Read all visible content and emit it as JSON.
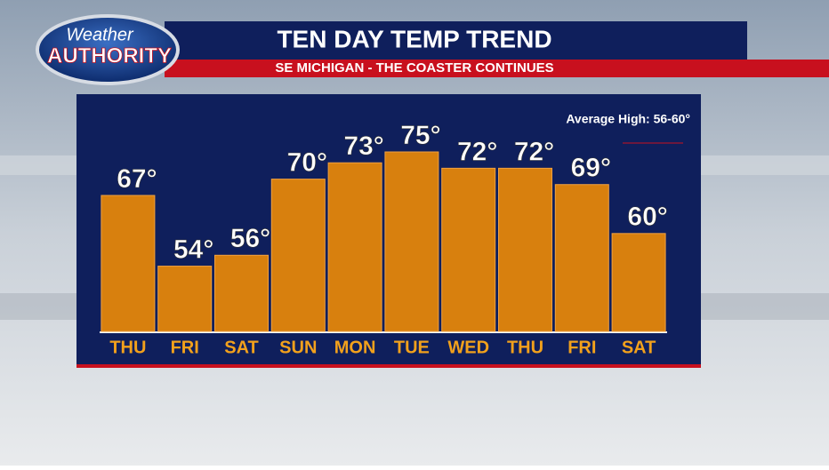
{
  "logo": {
    "line1": "Weather",
    "line2": "AUTHORITY"
  },
  "chart_data": {
    "type": "bar",
    "title": "TEN DAY TEMP TREND",
    "subtitle": "SE MICHIGAN - THE COASTER CONTINUES",
    "annotation": "Average High: 56-60°",
    "categories": [
      "THU",
      "FRI",
      "SAT",
      "SUN",
      "MON",
      "TUE",
      "WED",
      "THU",
      "FRI",
      "SAT"
    ],
    "values": [
      67,
      54,
      56,
      70,
      73,
      75,
      72,
      72,
      69,
      60
    ],
    "value_labels": [
      "67°",
      "54°",
      "56°",
      "70°",
      "73°",
      "75°",
      "72°",
      "72°",
      "69°",
      "60°"
    ],
    "color": "#d8800e",
    "ylim": [
      42,
      75
    ]
  }
}
